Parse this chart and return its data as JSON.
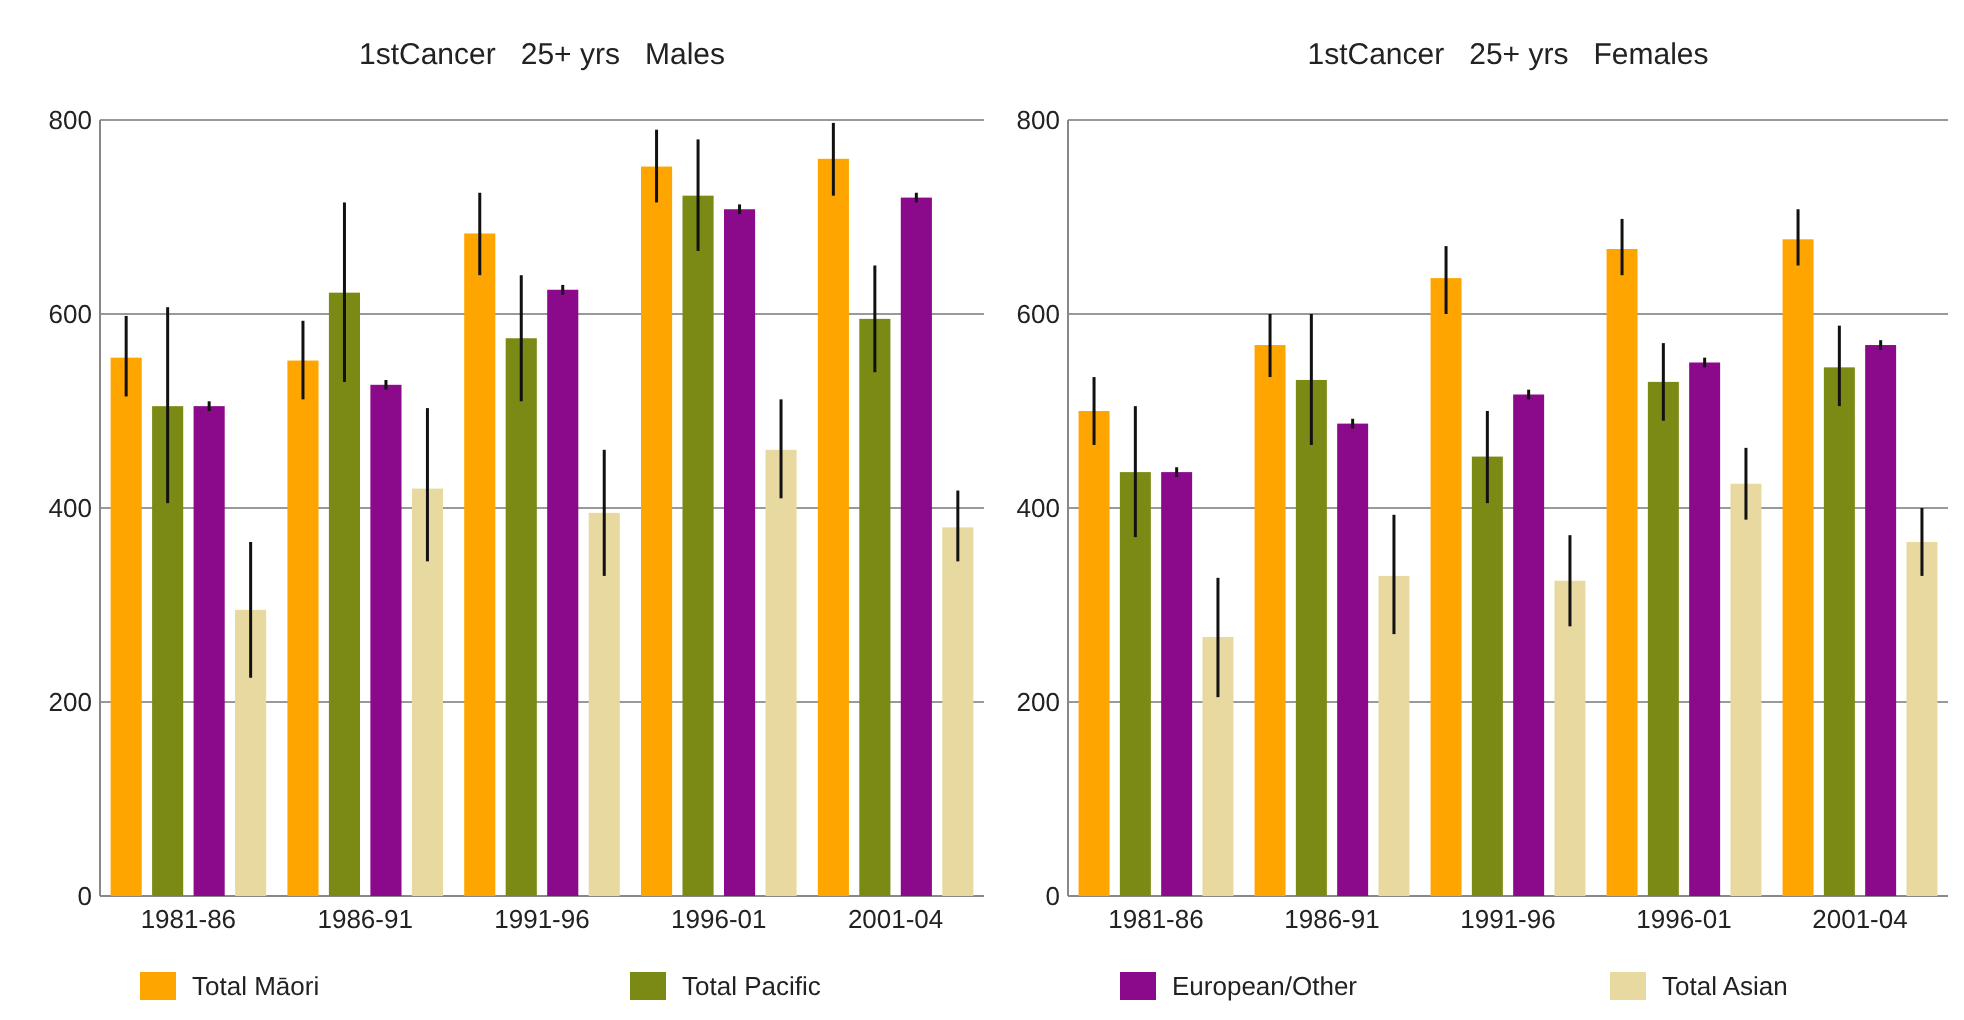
{
  "chart_data": [
    {
      "type": "bar",
      "title": "1stCancer   25+ yrs   Males",
      "categories": [
        "1981-86",
        "1986-91",
        "1991-96",
        "1996-01",
        "2001-04"
      ],
      "ylim": [
        0,
        800
      ],
      "yticks": [
        0,
        200,
        400,
        600,
        800
      ],
      "grid": "y",
      "legend": "bottom",
      "series": [
        {
          "name": "Total Māori",
          "color": "#ffa500",
          "values": [
            555,
            552,
            683,
            752,
            760
          ],
          "errors": [
            [
              515,
              598
            ],
            [
              512,
              593
            ],
            [
              640,
              725
            ],
            [
              715,
              790
            ],
            [
              722,
              797
            ]
          ]
        },
        {
          "name": "Total Pacific",
          "color": "#7b8a14",
          "values": [
            505,
            622,
            575,
            722,
            595
          ],
          "errors": [
            [
              405,
              607
            ],
            [
              530,
              715
            ],
            [
              510,
              640
            ],
            [
              665,
              780
            ],
            [
              540,
              650
            ]
          ]
        },
        {
          "name": "European/Other",
          "color": "#8b0a8b",
          "values": [
            505,
            527,
            625,
            708,
            720
          ],
          "errors": [
            [
              500,
              510
            ],
            [
              522,
              532
            ],
            [
              620,
              630
            ],
            [
              703,
              713
            ],
            [
              715,
              725
            ]
          ]
        },
        {
          "name": "Total Asian",
          "color": "#e8d9a0",
          "values": [
            295,
            420,
            395,
            460,
            380
          ],
          "errors": [
            [
              225,
              365
            ],
            [
              345,
              503
            ],
            [
              330,
              460
            ],
            [
              410,
              512
            ],
            [
              345,
              418
            ]
          ]
        }
      ]
    },
    {
      "type": "bar",
      "title": "1stCancer   25+ yrs   Females",
      "categories": [
        "1981-86",
        "1986-91",
        "1991-96",
        "1996-01",
        "2001-04"
      ],
      "ylim": [
        0,
        800
      ],
      "yticks": [
        0,
        200,
        400,
        600,
        800
      ],
      "grid": "y",
      "series": [
        {
          "color": "#ffa500",
          "values": [
            500,
            568,
            637,
            667,
            677
          ],
          "errors": [
            [
              465,
              535
            ],
            [
              535,
              600
            ],
            [
              600,
              670
            ],
            [
              640,
              698
            ],
            [
              650,
              708
            ]
          ]
        },
        {
          "color": "#7b8a14",
          "values": [
            437,
            532,
            453,
            530,
            545
          ],
          "errors": [
            [
              370,
              505
            ],
            [
              465,
              600
            ],
            [
              405,
              500
            ],
            [
              490,
              570
            ],
            [
              505,
              588
            ]
          ]
        },
        {
          "color": "#8b0a8b",
          "values": [
            437,
            487,
            517,
            550,
            568
          ],
          "errors": [
            [
              432,
              442
            ],
            [
              482,
              492
            ],
            [
              512,
              522
            ],
            [
              545,
              555
            ],
            [
              563,
              573
            ]
          ]
        },
        {
          "color": "#e8d9a0",
          "values": [
            267,
            330,
            325,
            425,
            365
          ],
          "errors": [
            [
              205,
              328
            ],
            [
              270,
              393
            ],
            [
              278,
              372
            ],
            [
              388,
              462
            ],
            [
              330,
              400
            ]
          ]
        }
      ]
    }
  ]
}
